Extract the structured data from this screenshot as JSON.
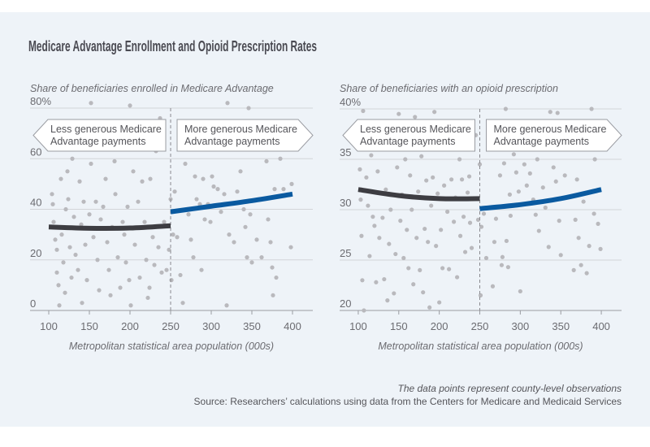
{
  "title": "Medicare Advantage Enrollment and Opioid Prescription Rates",
  "footer": {
    "note": "The data points represent county-level observations",
    "source": "Source: Researchers’ calculations using data from the Centers for Medicare and Medicaid Services"
  },
  "colors": {
    "background": "#eef3f8",
    "points": "#b9b9bd",
    "fit_below": "#3d3d42",
    "fit_above": "#0a5aa0",
    "grid": "#d2d4d8",
    "cutoff": "#8a8a8f"
  },
  "chart_data": [
    {
      "type": "scatter",
      "ylabel": "Share of beneficiaries enrolled in Medicare Advantage",
      "xlabel": "Metropolitan statistical area population (000s)",
      "xlim": [
        77,
        425
      ],
      "ylim": [
        0,
        80
      ],
      "xticks": [
        "100",
        "150",
        "200",
        "250",
        "300",
        "350",
        "400"
      ],
      "yticks": [
        "0",
        "20",
        "40",
        "60",
        "80%"
      ],
      "grid": true,
      "cutoff": 250,
      "callouts": {
        "left": [
          "Less generous Medicare",
          "Advantage payments"
        ],
        "right": [
          "More generous Medicare",
          "Advantage payments"
        ]
      },
      "fit_below": [
        [
          100,
          33
        ],
        [
          150,
          32.5
        ],
        [
          200,
          32.6
        ],
        [
          250,
          33.5
        ]
      ],
      "fit_above": [
        [
          250,
          39
        ],
        [
          300,
          41.2
        ],
        [
          350,
          43.4
        ],
        [
          400,
          46
        ]
      ],
      "points": [
        [
          104,
          46
        ],
        [
          105,
          42
        ],
        [
          106,
          35
        ],
        [
          108,
          28
        ],
        [
          110,
          24
        ],
        [
          110,
          15
        ],
        [
          112,
          10
        ],
        [
          113,
          2
        ],
        [
          115,
          52
        ],
        [
          116,
          30
        ],
        [
          118,
          19
        ],
        [
          120,
          7
        ],
        [
          121,
          40
        ],
        [
          123,
          55
        ],
        [
          124,
          44
        ],
        [
          126,
          25
        ],
        [
          128,
          13
        ],
        [
          129,
          60
        ],
        [
          131,
          37
        ],
        [
          133,
          22
        ],
        [
          136,
          16
        ],
        [
          138,
          51
        ],
        [
          140,
          34
        ],
        [
          141,
          3
        ],
        [
          143,
          43
        ],
        [
          145,
          26
        ],
        [
          147,
          12
        ],
        [
          150,
          38
        ],
        [
          152,
          82
        ],
        [
          152,
          58
        ],
        [
          155,
          29
        ],
        [
          158,
          43
        ],
        [
          160,
          20
        ],
        [
          162,
          8
        ],
        [
          164,
          36
        ],
        [
          167,
          41
        ],
        [
          170,
          52
        ],
        [
          172,
          27
        ],
        [
          174,
          16
        ],
        [
          176,
          6
        ],
        [
          178,
          33
        ],
        [
          181,
          59
        ],
        [
          182,
          46
        ],
        [
          185,
          21
        ],
        [
          188,
          9
        ],
        [
          191,
          35
        ],
        [
          193,
          30
        ],
        [
          195,
          19
        ],
        [
          197,
          41
        ],
        [
          199,
          12
        ],
        [
          200,
          81
        ],
        [
          201,
          2
        ],
        [
          204,
          55
        ],
        [
          206,
          26
        ],
        [
          210,
          43
        ],
        [
          212,
          13
        ],
        [
          215,
          51
        ],
        [
          218,
          35
        ],
        [
          220,
          20
        ],
        [
          222,
          5
        ],
        [
          224,
          9
        ],
        [
          225,
          52
        ],
        [
          228,
          29
        ],
        [
          230,
          18
        ],
        [
          232,
          63
        ],
        [
          235,
          25
        ],
        [
          237,
          76
        ],
        [
          239,
          15
        ],
        [
          242,
          35
        ],
        [
          245,
          16
        ],
        [
          248,
          24
        ],
        [
          250,
          44
        ],
        [
          251,
          12
        ],
        [
          253,
          30
        ],
        [
          255,
          47
        ],
        [
          258,
          29
        ],
        [
          262,
          14
        ],
        [
          265,
          3
        ],
        [
          268,
          58
        ],
        [
          272,
          38
        ],
        [
          275,
          28
        ],
        [
          278,
          21
        ],
        [
          280,
          53
        ],
        [
          282,
          44
        ],
        [
          286,
          42
        ],
        [
          288,
          16
        ],
        [
          290,
          52
        ],
        [
          292,
          36
        ],
        [
          296,
          42
        ],
        [
          299,
          35
        ],
        [
          301,
          53
        ],
        [
          303,
          49
        ],
        [
          308,
          48
        ],
        [
          312,
          39
        ],
        [
          316,
          46
        ],
        [
          319,
          2
        ],
        [
          320,
          82
        ],
        [
          322,
          30
        ],
        [
          328,
          27
        ],
        [
          332,
          47
        ],
        [
          336,
          55
        ],
        [
          340,
          40
        ],
        [
          342,
          33
        ],
        [
          344,
          21
        ],
        [
          346,
          80
        ],
        [
          348,
          38
        ],
        [
          350,
          19
        ],
        [
          356,
          28
        ],
        [
          362,
          21
        ],
        [
          368,
          59
        ],
        [
          370,
          36
        ],
        [
          373,
          27
        ],
        [
          375,
          17
        ],
        [
          376,
          6
        ],
        [
          378,
          48
        ],
        [
          380,
          13
        ],
        [
          385,
          60
        ],
        [
          389,
          48
        ],
        [
          398,
          25
        ],
        [
          399,
          50
        ]
      ]
    },
    {
      "type": "scatter",
      "ylabel": "Share of beneficiaries with an opioid prescription",
      "xlabel": "Metropolitan statistical area population (000s)",
      "xlim": [
        77,
        425
      ],
      "ylim": [
        20,
        40
      ],
      "xticks": [
        "100",
        "150",
        "200",
        "250",
        "300",
        "350",
        "400"
      ],
      "yticks": [
        "20",
        "25",
        "30",
        "35",
        "40%"
      ],
      "grid": true,
      "cutoff": 250,
      "callouts": {
        "left": [
          "Less generous Medicare",
          "Advantage payments"
        ],
        "right": [
          "More generous Medicare",
          "Advantage payments"
        ]
      },
      "fit_below": [
        [
          100,
          32
        ],
        [
          150,
          31.4
        ],
        [
          200,
          31.1
        ],
        [
          250,
          31.1
        ]
      ],
      "fit_above": [
        [
          250,
          30.1
        ],
        [
          300,
          30.5
        ],
        [
          350,
          31.1
        ],
        [
          400,
          32
        ]
      ],
      "points": [
        [
          102,
          34
        ],
        [
          103,
          31
        ],
        [
          104,
          27.4
        ],
        [
          105,
          23
        ],
        [
          106,
          39.8
        ],
        [
          107,
          20
        ],
        [
          108,
          36.8
        ],
        [
          110,
          33.2
        ],
        [
          112,
          30.4
        ],
        [
          114,
          25.4
        ],
        [
          116,
          35.4
        ],
        [
          118,
          29.3
        ],
        [
          120,
          28.4
        ],
        [
          122,
          22.8
        ],
        [
          124,
          33.8
        ],
        [
          126,
          27.2
        ],
        [
          128,
          36
        ],
        [
          130,
          29.2
        ],
        [
          132,
          23.1
        ],
        [
          134,
          32
        ],
        [
          136,
          21
        ],
        [
          138,
          26.6
        ],
        [
          140,
          30
        ],
        [
          142,
          37.1
        ],
        [
          144,
          21.7
        ],
        [
          146,
          25.6
        ],
        [
          148,
          34.2
        ],
        [
          150,
          39.5
        ],
        [
          152,
          28.9
        ],
        [
          154,
          31.5
        ],
        [
          156,
          25.2
        ],
        [
          158,
          35
        ],
        [
          160,
          28
        ],
        [
          162,
          24.2
        ],
        [
          164,
          33.4
        ],
        [
          166,
          30
        ],
        [
          168,
          22.6
        ],
        [
          170,
          39.2
        ],
        [
          172,
          27.2
        ],
        [
          174,
          31.8
        ],
        [
          176,
          24
        ],
        [
          178,
          35.3
        ],
        [
          180,
          21.8
        ],
        [
          182,
          28.1
        ],
        [
          184,
          32.9
        ],
        [
          186,
          26.8
        ],
        [
          188,
          20.3
        ],
        [
          190,
          30.4
        ],
        [
          192,
          33.2
        ],
        [
          194,
          39.7
        ],
        [
          196,
          26.4
        ],
        [
          198,
          31.6
        ],
        [
          200,
          20.8
        ],
        [
          202,
          28
        ],
        [
          204,
          24.2
        ],
        [
          206,
          32.4
        ],
        [
          208,
          36.6
        ],
        [
          210,
          29.8
        ],
        [
          212,
          24.1
        ],
        [
          215,
          33
        ],
        [
          218,
          28.8
        ],
        [
          220,
          31.2
        ],
        [
          222,
          23.3
        ],
        [
          225,
          35
        ],
        [
          226,
          27.4
        ],
        [
          228,
          33
        ],
        [
          230,
          29.3
        ],
        [
          232,
          25.8
        ],
        [
          235,
          31.7
        ],
        [
          237,
          33.3
        ],
        [
          238,
          28.7
        ],
        [
          240,
          26.2
        ],
        [
          245,
          37.4
        ],
        [
          248,
          29
        ],
        [
          250,
          34.5
        ],
        [
          251,
          21.5
        ],
        [
          252,
          28.3
        ],
        [
          255,
          29.6
        ],
        [
          258,
          25.2
        ],
        [
          266,
          22.4
        ],
        [
          268,
          26.8
        ],
        [
          270,
          29.1
        ],
        [
          275,
          33.4
        ],
        [
          277,
          24.5
        ],
        [
          278,
          25.3
        ],
        [
          280,
          34.6
        ],
        [
          282,
          40
        ],
        [
          283,
          26.9
        ],
        [
          285,
          24.3
        ],
        [
          287,
          31.5
        ],
        [
          288,
          29.4
        ],
        [
          292,
          35.5
        ],
        [
          295,
          33.7
        ],
        [
          298,
          31.8
        ],
        [
          300,
          21.9
        ],
        [
          305,
          34.5
        ],
        [
          308,
          32.4
        ],
        [
          312,
          33.6
        ],
        [
          316,
          31
        ],
        [
          319,
          29.5
        ],
        [
          321,
          35
        ],
        [
          323,
          27.9
        ],
        [
          328,
          32.2
        ],
        [
          331,
          30.2
        ],
        [
          335,
          26.3
        ],
        [
          337,
          39.7
        ],
        [
          341,
          34.2
        ],
        [
          344,
          32.8
        ],
        [
          346,
          39.6
        ],
        [
          348,
          28.9
        ],
        [
          350,
          25.5
        ],
        [
          355,
          33.4
        ],
        [
          360,
          37.7
        ],
        [
          366,
          24
        ],
        [
          368,
          29
        ],
        [
          370,
          33
        ],
        [
          372,
          27.2
        ],
        [
          375,
          24.5
        ],
        [
          378,
          30.8
        ],
        [
          380,
          38
        ],
        [
          382,
          23.7
        ],
        [
          385,
          26.4
        ],
        [
          388,
          40
        ],
        [
          391,
          29.6
        ],
        [
          392,
          35
        ],
        [
          396,
          28.6
        ],
        [
          399,
          26.1
        ]
      ]
    }
  ]
}
